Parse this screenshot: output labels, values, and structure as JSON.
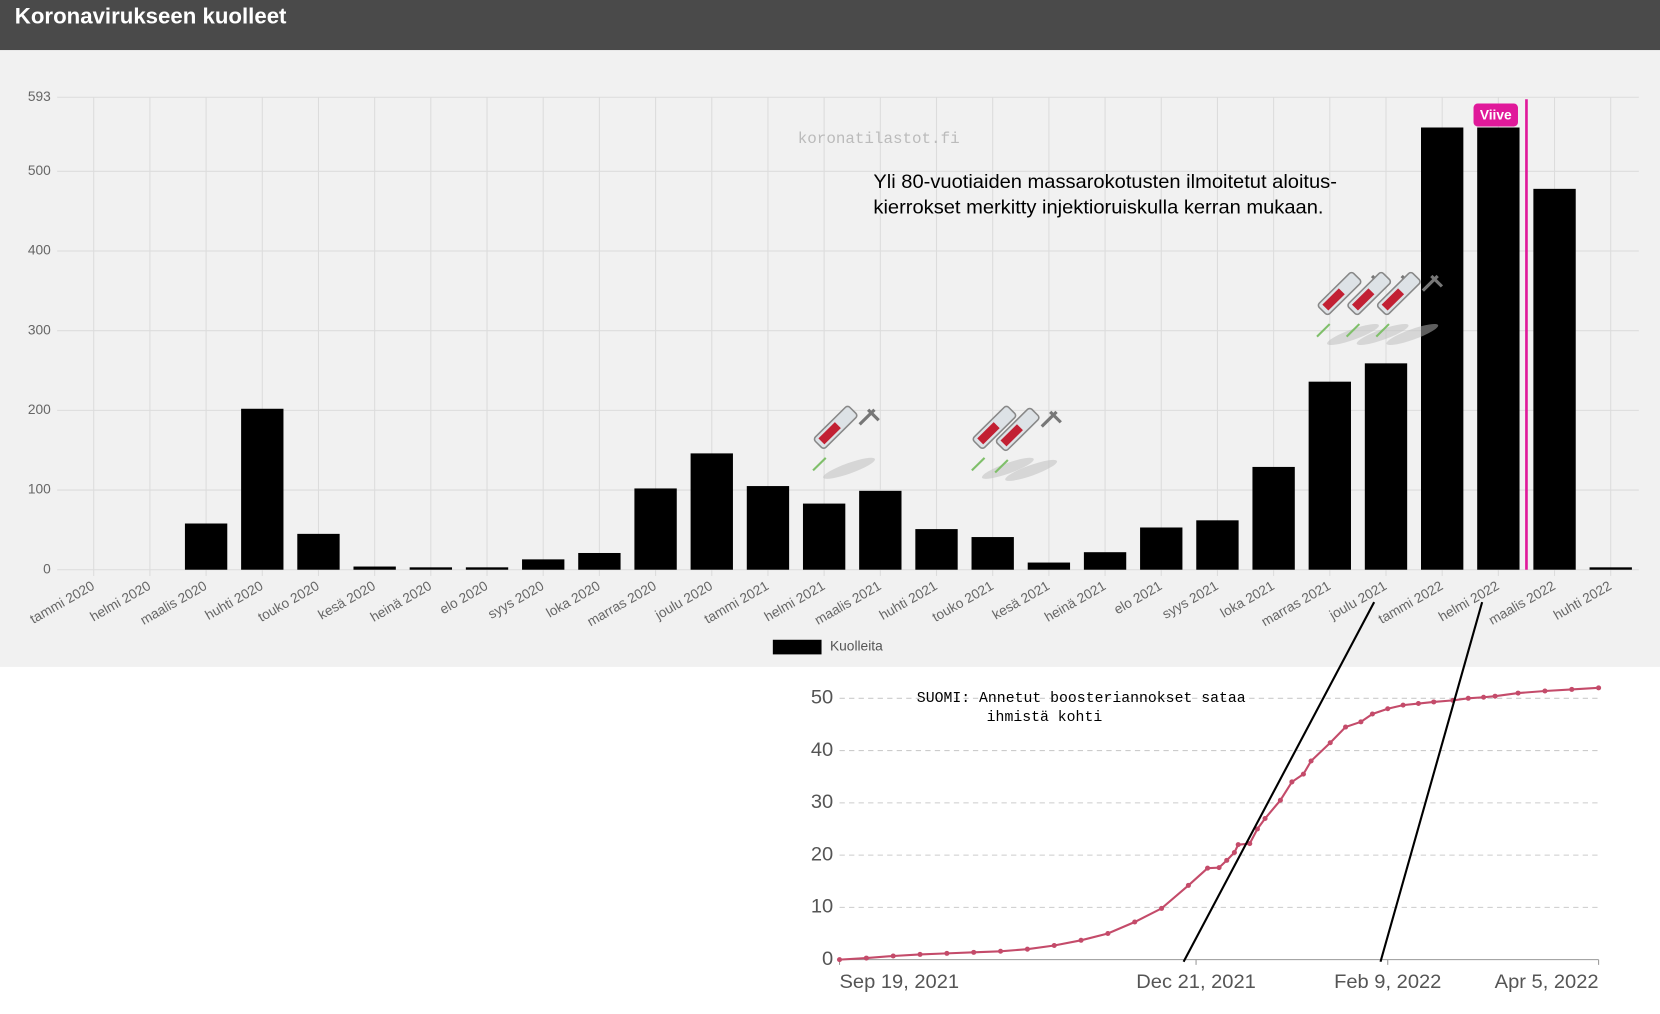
{
  "header": {
    "title": "Koronavirukseen kuolleet"
  },
  "chart_data": [
    {
      "type": "bar",
      "watermark": "koronatilastot.fi",
      "annotation": [
        "Yli 80-vuotiaiden massarokotusten ilmoitetut aloitus-",
        "kierrokset merkitty injektioruiskulla kerran mukaan."
      ],
      "marker_label": "Viive",
      "categories": [
        "tammi 2020",
        "helmi 2020",
        "maalis 2020",
        "huhti 2020",
        "touko 2020",
        "kesä 2020",
        "heinä 2020",
        "elo 2020",
        "syys 2020",
        "loka 2020",
        "marras 2020",
        "joulu 2020",
        "tammi 2021",
        "helmi 2021",
        "maalis 2021",
        "huhti 2021",
        "touko 2021",
        "kesä 2021",
        "heinä 2021",
        "elo 2021",
        "syys 2021",
        "loka 2021",
        "marras 2021",
        "joulu 2021",
        "tammi 2022",
        "helmi 2022",
        "maalis 2022",
        "huhti 2022"
      ],
      "series": [
        {
          "name": "Kuolleita",
          "color": "#000000",
          "values": [
            0,
            0,
            58,
            202,
            45,
            4,
            3,
            3,
            13,
            21,
            102,
            146,
            105,
            83,
            99,
            51,
            41,
            9,
            22,
            53,
            62,
            129,
            236,
            259,
            555,
            555,
            478,
            3
          ]
        }
      ],
      "ylim": [
        0,
        593
      ],
      "yticks": [
        0,
        100,
        200,
        300,
        400,
        500,
        593
      ],
      "grid": true,
      "legend": "bottom"
    },
    {
      "type": "line",
      "title": [
        "SUOMI: Annetut boosteriannokset sataa",
        "ihmistä kohti"
      ],
      "x": [
        "2021-09-19",
        "2021-09-26",
        "2021-10-03",
        "2021-10-10",
        "2021-10-17",
        "2021-10-24",
        "2021-10-31",
        "2021-11-07",
        "2021-11-14",
        "2021-11-21",
        "2021-11-28",
        "2021-12-05",
        "2021-12-12",
        "2021-12-19",
        "2021-12-24",
        "2021-12-27",
        "2021-12-29",
        "2021-12-31",
        "2022-01-01",
        "2022-01-04",
        "2022-01-06",
        "2022-01-08",
        "2022-01-12",
        "2022-01-15",
        "2022-01-18",
        "2022-01-20",
        "2022-01-25",
        "2022-01-29",
        "2022-02-02",
        "2022-02-05",
        "2022-02-09",
        "2022-02-13",
        "2022-02-17",
        "2022-02-21",
        "2022-02-26",
        "2022-03-02",
        "2022-03-06",
        "2022-03-09",
        "2022-03-15",
        "2022-03-22",
        "2022-03-29",
        "2022-04-05"
      ],
      "series": [
        {
          "color": "#c44b6a",
          "values": [
            0,
            0.3,
            0.7,
            1.0,
            1.2,
            1.4,
            1.6,
            2.0,
            2.7,
            3.7,
            5.0,
            7.2,
            9.8,
            14.2,
            17.5,
            17.6,
            19,
            20.5,
            22,
            22.2,
            25,
            27,
            30.5,
            34,
            35.5,
            38,
            41.5,
            44.5,
            45.5,
            47,
            48,
            48.7,
            49.0,
            49.3,
            49.6,
            50,
            50.2,
            50.4,
            51.0,
            51.4,
            51.7,
            52.0
          ]
        }
      ],
      "xlim": [
        "2021-09-19",
        "2022-04-05"
      ],
      "xticks": [
        {
          "value": "2021-09-19",
          "label": "Sep 19, 2021"
        },
        {
          "value": "2021-12-21",
          "label": "Dec 21, 2021"
        },
        {
          "value": "2022-02-09",
          "label": "Feb 9, 2022"
        },
        {
          "value": "2022-04-05",
          "label": "Apr 5, 2022"
        }
      ],
      "ylim": [
        0,
        52
      ],
      "yticks": [
        0,
        10,
        20,
        30,
        40,
        50
      ],
      "grid": true
    }
  ]
}
